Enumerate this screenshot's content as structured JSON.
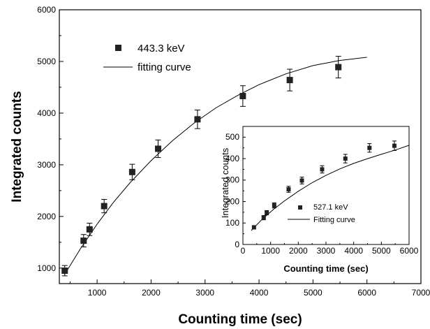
{
  "chart_data": [
    {
      "type": "scatter",
      "xlabel": "Counting time (sec)",
      "ylabel": "Integrated counts",
      "xlim": [
        300,
        7000
      ],
      "ylim": [
        700,
        6000
      ],
      "xticks": [
        1000,
        2000,
        3000,
        4000,
        5000,
        6000,
        7000
      ],
      "yticks": [
        1000,
        2000,
        3000,
        4000,
        5000,
        6000
      ],
      "grid": false,
      "legend_position": "top-left",
      "series": [
        {
          "name": "443.3 keV",
          "marker": "square",
          "x": [
            400,
            750,
            860,
            1130,
            1650,
            2130,
            2860,
            3700,
            4570,
            5470
          ],
          "y": [
            950,
            1530,
            1750,
            2200,
            2860,
            3310,
            3880,
            4330,
            4640,
            4890
          ],
          "yerr": [
            100,
            120,
            120,
            130,
            150,
            170,
            180,
            200,
            210,
            210
          ]
        },
        {
          "name": "fitting curve",
          "style": "line",
          "x": [
            400,
            700,
            1000,
            1300,
            1600,
            2000,
            2400,
            2800,
            3200,
            3600,
            4000,
            4500,
            5000,
            5500,
            6000
          ],
          "y": [
            880,
            1390,
            1850,
            2270,
            2640,
            3080,
            3470,
            3810,
            4100,
            4340,
            4550,
            4760,
            4920,
            5020,
            5080
          ]
        }
      ]
    },
    {
      "type": "scatter",
      "inset": true,
      "xlabel": "Counting time (sec)",
      "ylabel": "Integrated counts",
      "xlim": [
        0,
        6000
      ],
      "ylim": [
        0,
        550
      ],
      "xticks": [
        0,
        1000,
        2000,
        3000,
        4000,
        5000,
        6000
      ],
      "yticks": [
        0,
        100,
        200,
        300,
        400,
        500
      ],
      "grid": false,
      "legend_position": "bottom-center",
      "series": [
        {
          "name": "527.1 keV",
          "marker": "square",
          "x": [
            400,
            750,
            860,
            1130,
            1650,
            2130,
            2860,
            3700,
            4570,
            5470
          ],
          "y": [
            80,
            125,
            148,
            182,
            257,
            298,
            350,
            400,
            450,
            460
          ],
          "yerr": [
            8,
            10,
            10,
            12,
            14,
            16,
            17,
            20,
            20,
            22
          ]
        },
        {
          "name": "Fitting curve",
          "style": "line",
          "x": [
            300,
            700,
            1100,
            1500,
            2000,
            2500,
            3000,
            3500,
            4000,
            4500,
            5000,
            5500,
            6000
          ],
          "y": [
            65,
            118,
            163,
            203,
            248,
            288,
            322,
            352,
            378,
            400,
            420,
            440,
            462
          ]
        }
      ]
    }
  ]
}
